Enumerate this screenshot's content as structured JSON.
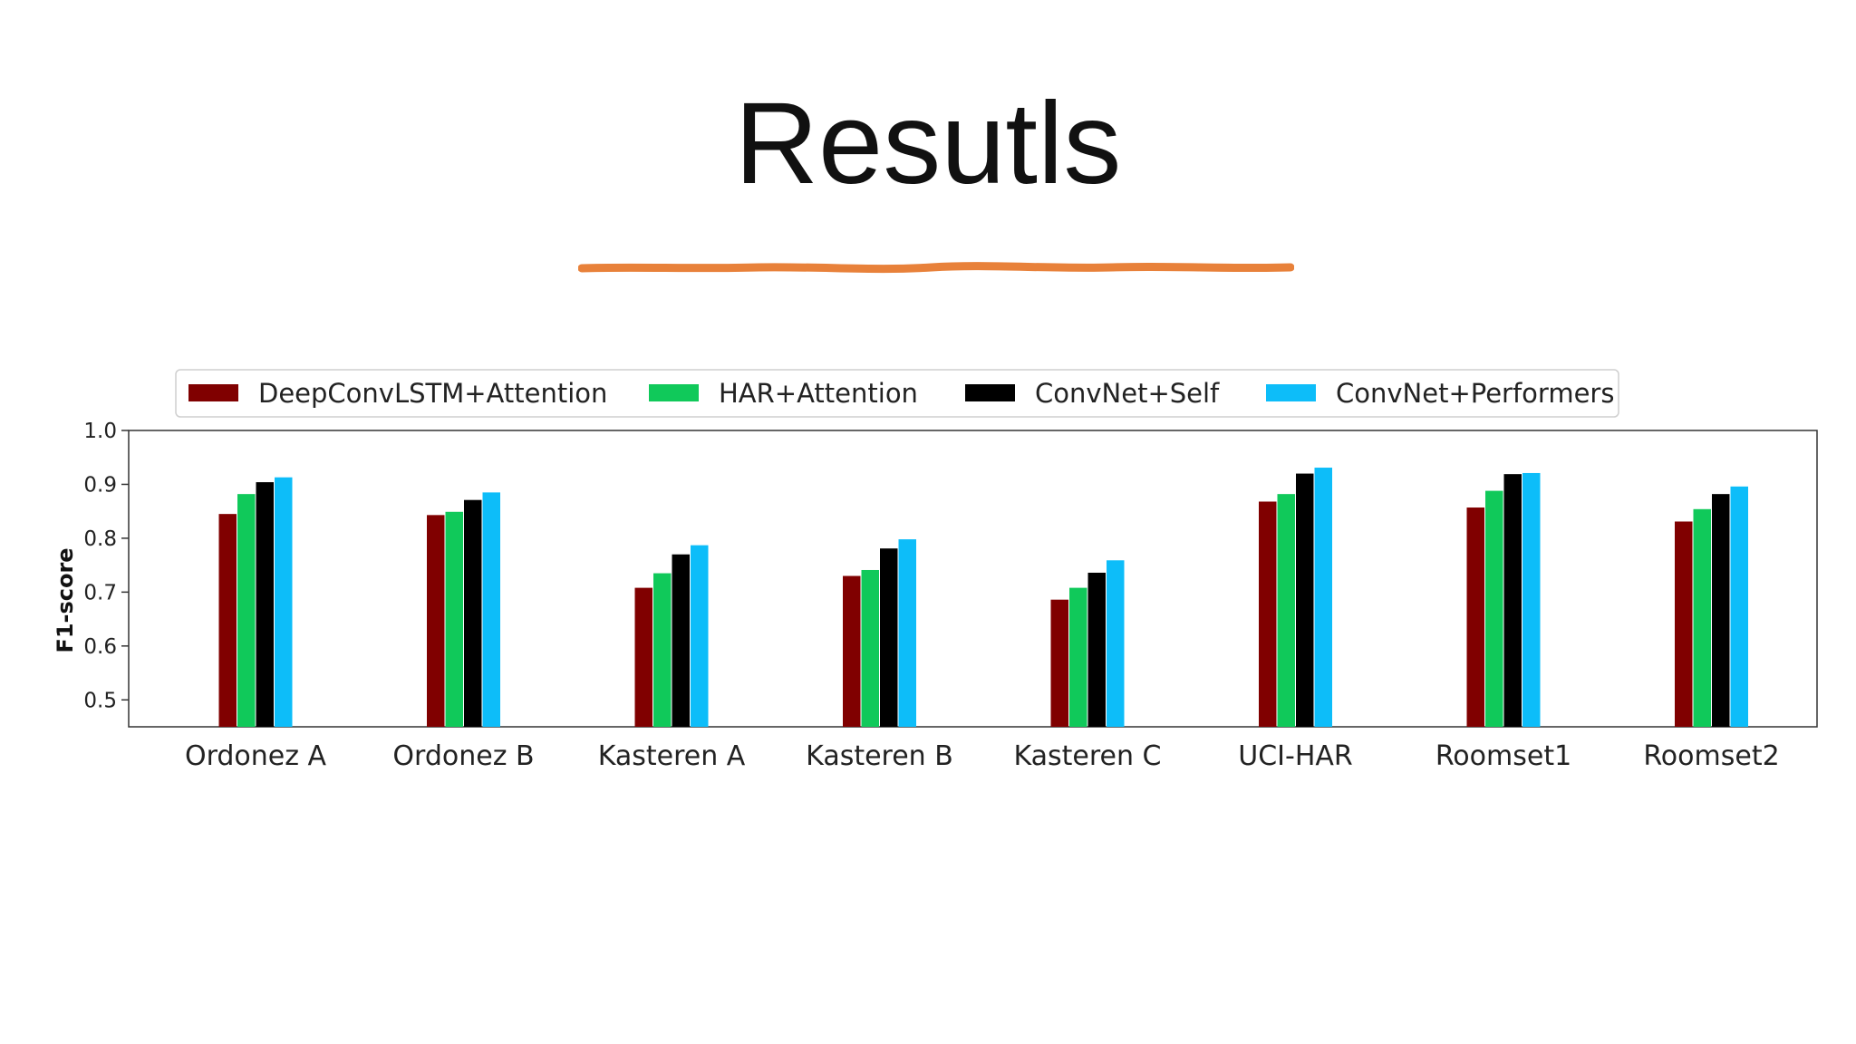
{
  "slide": {
    "title": "Resutls",
    "underline_color": "#E8813A"
  },
  "chart_data": {
    "type": "bar",
    "title": "",
    "xlabel": "",
    "ylabel": "F1-score",
    "ylim": [
      0.45,
      1.0
    ],
    "yticks": [
      "0.5",
      "0.6",
      "0.7",
      "0.8",
      "0.9",
      "1.0"
    ],
    "grid": false,
    "legend_position": "top",
    "categories": [
      "Ordonez A",
      "Ordonez B",
      "Kasteren A",
      "Kasteren  B",
      "Kasteren C",
      "UCI-HAR",
      "Roomset1",
      "Roomset2"
    ],
    "series": [
      {
        "name": "DeepConvLSTM+Attention",
        "color": "#800000",
        "values": [
          0.845,
          0.843,
          0.708,
          0.73,
          0.686,
          0.868,
          0.857,
          0.831
        ]
      },
      {
        "name": "HAR+Attention",
        "color": "#10C95A",
        "values": [
          0.882,
          0.849,
          0.735,
          0.741,
          0.708,
          0.882,
          0.888,
          0.854
        ]
      },
      {
        "name": "ConvNet+Self",
        "color": "#000000",
        "values": [
          0.904,
          0.871,
          0.77,
          0.781,
          0.736,
          0.92,
          0.919,
          0.882
        ]
      },
      {
        "name": "ConvNet+Performers",
        "color": "#0DBDF9",
        "values": [
          0.913,
          0.885,
          0.787,
          0.798,
          0.759,
          0.931,
          0.921,
          0.896
        ]
      }
    ]
  }
}
